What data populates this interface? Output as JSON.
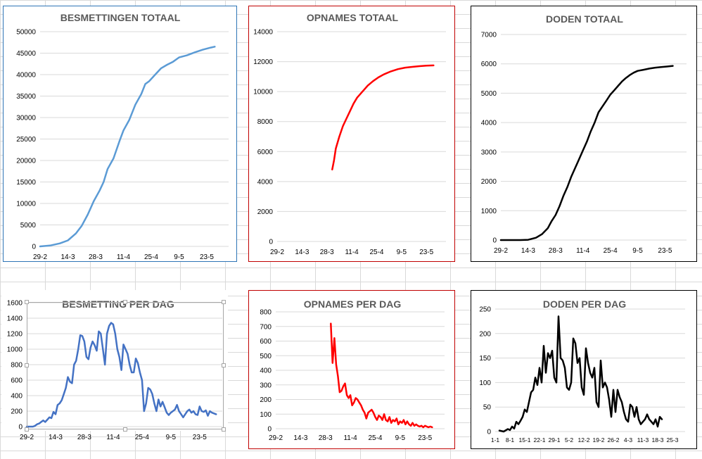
{
  "colors": {
    "blue_light": "#5b9bd5",
    "blue_dark": "#4472c4",
    "red": "#ff0000",
    "black": "#000000",
    "border_blue": "#2e75b6",
    "border_red": "#c00000",
    "border_black": "#000000"
  },
  "chart_data": [
    {
      "type": "line",
      "title": "BESMETTINGEN TOTAAL",
      "color": "#5b9bd5",
      "ylim": [
        0,
        50000
      ],
      "yticks": [
        0,
        5000,
        10000,
        15000,
        20000,
        25000,
        30000,
        35000,
        40000,
        45000,
        50000
      ],
      "xlim": [
        0,
        95
      ],
      "xticks": [
        {
          "pos": 0,
          "label": "29-2"
        },
        {
          "pos": 14,
          "label": "14-3"
        },
        {
          "pos": 28,
          "label": "28-3"
        },
        {
          "pos": 42,
          "label": "11-4"
        },
        {
          "pos": 56,
          "label": "25-4"
        },
        {
          "pos": 70,
          "label": "9-5"
        },
        {
          "pos": 84,
          "label": "23-5"
        }
      ],
      "series": [
        {
          "points": [
            [
              0,
              0
            ],
            [
              5,
              200
            ],
            [
              10,
              700
            ],
            [
              14,
              1400
            ],
            [
              18,
              3000
            ],
            [
              21,
              4800
            ],
            [
              24,
              7400
            ],
            [
              27,
              10500
            ],
            [
              30,
              13000
            ],
            [
              32,
              15000
            ],
            [
              34,
              18000
            ],
            [
              37,
              20500
            ],
            [
              40,
              24500
            ],
            [
              42,
              27000
            ],
            [
              45,
              29500
            ],
            [
              48,
              33000
            ],
            [
              51,
              35500
            ],
            [
              53,
              37800
            ],
            [
              55,
              38500
            ],
            [
              58,
              40000
            ],
            [
              61,
              41500
            ],
            [
              64,
              42300
            ],
            [
              67,
              43000
            ],
            [
              70,
              44000
            ],
            [
              74,
              44500
            ],
            [
              78,
              45200
            ],
            [
              82,
              45800
            ],
            [
              86,
              46300
            ],
            [
              88,
              46500
            ]
          ]
        }
      ]
    },
    {
      "type": "line",
      "title": "OPNAMES TOTAAL",
      "color": "#ff0000",
      "ylim": [
        0,
        14000
      ],
      "yticks": [
        0,
        2000,
        4000,
        6000,
        8000,
        10000,
        12000,
        14000
      ],
      "xlim": [
        0,
        95
      ],
      "xticks": [
        {
          "pos": 0,
          "label": "29-2"
        },
        {
          "pos": 14,
          "label": "14-3"
        },
        {
          "pos": 28,
          "label": "28-3"
        },
        {
          "pos": 42,
          "label": "11-4"
        },
        {
          "pos": 56,
          "label": "25-4"
        },
        {
          "pos": 70,
          "label": "9-5"
        },
        {
          "pos": 84,
          "label": "23-5"
        }
      ],
      "series": [
        {
          "points": [
            [
              31,
              4800
            ],
            [
              32,
              5400
            ],
            [
              33,
              6200
            ],
            [
              35,
              7000
            ],
            [
              37,
              7700
            ],
            [
              39,
              8200
            ],
            [
              41,
              8700
            ],
            [
              43,
              9200
            ],
            [
              45,
              9600
            ],
            [
              48,
              10000
            ],
            [
              51,
              10400
            ],
            [
              54,
              10700
            ],
            [
              57,
              10950
            ],
            [
              60,
              11150
            ],
            [
              64,
              11350
            ],
            [
              68,
              11500
            ],
            [
              72,
              11600
            ],
            [
              76,
              11650
            ],
            [
              80,
              11700
            ],
            [
              84,
              11730
            ],
            [
              88,
              11750
            ]
          ]
        }
      ]
    },
    {
      "type": "line",
      "title": "DODEN TOTAAL",
      "color": "#000000",
      "ylim": [
        0,
        7000
      ],
      "yticks": [
        0,
        1000,
        2000,
        3000,
        4000,
        5000,
        6000,
        7000
      ],
      "xlim": [
        0,
        95
      ],
      "xticks": [
        {
          "pos": 0,
          "label": "29-2"
        },
        {
          "pos": 14,
          "label": "14-3"
        },
        {
          "pos": 28,
          "label": "28-3"
        },
        {
          "pos": 42,
          "label": "11-4"
        },
        {
          "pos": 56,
          "label": "25-4"
        },
        {
          "pos": 70,
          "label": "9-5"
        },
        {
          "pos": 84,
          "label": "23-5"
        }
      ],
      "series": [
        {
          "points": [
            [
              0,
              0
            ],
            [
              10,
              0
            ],
            [
              14,
              10
            ],
            [
              18,
              80
            ],
            [
              21,
              200
            ],
            [
              24,
              400
            ],
            [
              26,
              650
            ],
            [
              28,
              850
            ],
            [
              30,
              1150
            ],
            [
              32,
              1500
            ],
            [
              34,
              1800
            ],
            [
              36,
              2150
            ],
            [
              38,
              2450
            ],
            [
              40,
              2750
            ],
            [
              42,
              3050
            ],
            [
              44,
              3350
            ],
            [
              46,
              3700
            ],
            [
              48,
              4000
            ],
            [
              50,
              4350
            ],
            [
              52,
              4550
            ],
            [
              54,
              4750
            ],
            [
              56,
              4950
            ],
            [
              58,
              5100
            ],
            [
              60,
              5250
            ],
            [
              62,
              5400
            ],
            [
              64,
              5520
            ],
            [
              66,
              5620
            ],
            [
              68,
              5700
            ],
            [
              70,
              5760
            ],
            [
              73,
              5800
            ],
            [
              76,
              5840
            ],
            [
              79,
              5870
            ],
            [
              82,
              5890
            ],
            [
              85,
              5910
            ],
            [
              88,
              5930
            ]
          ]
        }
      ]
    },
    {
      "type": "line",
      "title": "BESMETTING PER DAG",
      "color": "#4472c4",
      "ylim": [
        0,
        1600
      ],
      "yticks": [
        0,
        200,
        400,
        600,
        800,
        1000,
        1200,
        1400,
        1600
      ],
      "xlim": [
        0,
        95
      ],
      "xticks": [
        {
          "pos": 0,
          "label": "29-2"
        },
        {
          "pos": 14,
          "label": "14-3"
        },
        {
          "pos": 28,
          "label": "28-3"
        },
        {
          "pos": 42,
          "label": "11-4"
        },
        {
          "pos": 56,
          "label": "25-4"
        },
        {
          "pos": 70,
          "label": "9-5"
        },
        {
          "pos": 84,
          "label": "23-5"
        }
      ],
      "series": [
        {
          "values": [
            0,
            0,
            0,
            0,
            10,
            30,
            40,
            60,
            80,
            60,
            90,
            120,
            110,
            190,
            160,
            280,
            300,
            340,
            420,
            500,
            640,
            580,
            560,
            800,
            850,
            1000,
            1180,
            1170,
            1100,
            900,
            870,
            1020,
            1100,
            1050,
            980,
            1230,
            1200,
            1000,
            800,
            1200,
            1300,
            1340,
            1320,
            1200,
            1000,
            900,
            730,
            1060,
            1000,
            940,
            800,
            700,
            700,
            880,
            820,
            700,
            600,
            200,
            300,
            500,
            480,
            420,
            300,
            200,
            350,
            260,
            320,
            250,
            180,
            150,
            180,
            200,
            220,
            280,
            200,
            160,
            120,
            160,
            200,
            220,
            180,
            200,
            160,
            150,
            260,
            200,
            190,
            210,
            140,
            200,
            180,
            170,
            160
          ]
        }
      ]
    },
    {
      "type": "line",
      "title": "OPNAMES PER DAG",
      "color": "#ff0000",
      "ylim": [
        0,
        800
      ],
      "yticks": [
        0,
        100,
        200,
        300,
        400,
        500,
        600,
        700,
        800
      ],
      "xlim": [
        0,
        95
      ],
      "xticks": [
        {
          "pos": 0,
          "label": "29-2"
        },
        {
          "pos": 14,
          "label": "14-3"
        },
        {
          "pos": 28,
          "label": "28-3"
        },
        {
          "pos": 42,
          "label": "11-4"
        },
        {
          "pos": 56,
          "label": "25-4"
        },
        {
          "pos": 70,
          "label": "9-5"
        },
        {
          "pos": 84,
          "label": "23-5"
        }
      ],
      "series": [
        {
          "start": 31,
          "values": [
            720,
            450,
            620,
            440,
            360,
            250,
            260,
            290,
            310,
            230,
            210,
            230,
            160,
            180,
            210,
            200,
            180,
            160,
            130,
            110,
            70,
            110,
            120,
            130,
            110,
            80,
            60,
            90,
            80,
            60,
            100,
            60,
            50,
            80,
            40,
            60,
            50,
            70,
            30,
            50,
            40,
            60,
            30,
            50,
            30,
            20,
            40,
            20,
            30,
            20,
            15,
            20,
            10,
            20,
            15,
            10,
            15,
            10
          ]
        }
      ]
    },
    {
      "type": "line",
      "title": "DODEN PER DAG",
      "color": "#000000",
      "ylim": [
        0,
        250
      ],
      "yticks": [
        0,
        50,
        100,
        150,
        200,
        250
      ],
      "xlim": [
        0,
        90
      ],
      "xticks": [
        {
          "pos": 0,
          "label": "1-1"
        },
        {
          "pos": 7,
          "label": "8-1"
        },
        {
          "pos": 14,
          "label": "15-1"
        },
        {
          "pos": 21,
          "label": "22-1"
        },
        {
          "pos": 28,
          "label": "29-1"
        },
        {
          "pos": 35,
          "label": "5-2"
        },
        {
          "pos": 42,
          "label": "12-2"
        },
        {
          "pos": 49,
          "label": "19-2"
        },
        {
          "pos": 56,
          "label": "26-2"
        },
        {
          "pos": 63,
          "label": "4-3"
        },
        {
          "pos": 70,
          "label": "11-3"
        },
        {
          "pos": 77,
          "label": "18-3"
        },
        {
          "pos": 84,
          "label": "25-3"
        }
      ],
      "series": [
        {
          "points": [
            [
              2,
              2
            ],
            [
              4,
              0
            ],
            [
              6,
              5
            ],
            [
              7,
              3
            ],
            [
              8,
              10
            ],
            [
              9,
              6
            ],
            [
              10,
              20
            ],
            [
              11,
              15
            ],
            [
              12,
              22
            ],
            [
              13,
              30
            ],
            [
              14,
              45
            ],
            [
              15,
              40
            ],
            [
              16,
              60
            ],
            [
              17,
              80
            ],
            [
              18,
              85
            ],
            [
              19,
              110
            ],
            [
              20,
              95
            ],
            [
              21,
              130
            ],
            [
              22,
              100
            ],
            [
              23,
              175
            ],
            [
              24,
              120
            ],
            [
              25,
              160
            ],
            [
              26,
              150
            ],
            [
              27,
              165
            ],
            [
              28,
              110
            ],
            [
              29,
              100
            ],
            [
              30,
              235
            ],
            [
              31,
              150
            ],
            [
              32,
              145
            ],
            [
              33,
              130
            ],
            [
              34,
              90
            ],
            [
              35,
              85
            ],
            [
              36,
              100
            ],
            [
              37,
              190
            ],
            [
              38,
              180
            ],
            [
              39,
              140
            ],
            [
              40,
              150
            ],
            [
              41,
              90
            ],
            [
              42,
              75
            ],
            [
              43,
              170
            ],
            [
              44,
              140
            ],
            [
              45,
              120
            ],
            [
              46,
              110
            ],
            [
              47,
              130
            ],
            [
              48,
              60
            ],
            [
              49,
              50
            ],
            [
              50,
              145
            ],
            [
              51,
              90
            ],
            [
              52,
              100
            ],
            [
              53,
              90
            ],
            [
              54,
              65
            ],
            [
              55,
              30
            ],
            [
              56,
              85
            ],
            [
              57,
              40
            ],
            [
              58,
              85
            ],
            [
              59,
              70
            ],
            [
              60,
              60
            ],
            [
              61,
              40
            ],
            [
              62,
              25
            ],
            [
              63,
              20
            ],
            [
              64,
              55
            ],
            [
              65,
              50
            ],
            [
              66,
              30
            ],
            [
              67,
              50
            ],
            [
              68,
              25
            ],
            [
              69,
              15
            ],
            [
              70,
              20
            ],
            [
              71,
              25
            ],
            [
              72,
              35
            ],
            [
              73,
              25
            ],
            [
              74,
              20
            ],
            [
              75,
              15
            ],
            [
              76,
              25
            ],
            [
              77,
              10
            ],
            [
              78,
              30
            ],
            [
              79,
              25
            ]
          ]
        }
      ]
    }
  ]
}
